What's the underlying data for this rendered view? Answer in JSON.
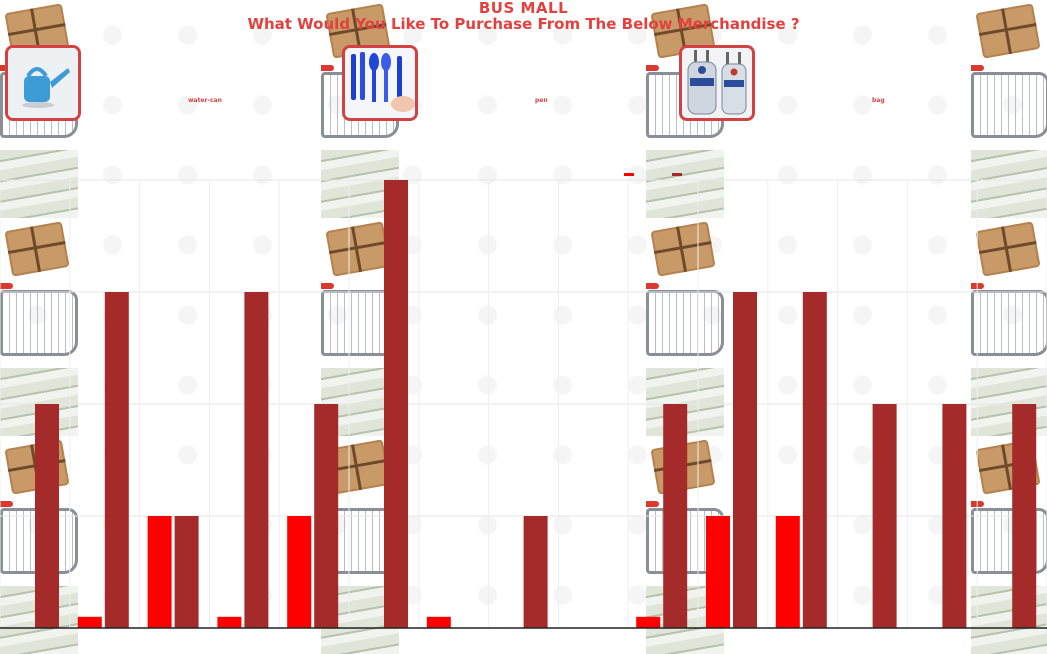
{
  "header": {
    "title": "BUS MALL",
    "subtitle": "What Would You Like To Purchase From The Below Merchandise ?"
  },
  "products": [
    {
      "name": "water-can",
      "icon": "water-can-icon"
    },
    {
      "name": "pen",
      "icon": "pen-icon"
    },
    {
      "name": "bag",
      "icon": "bag-icon"
    }
  ],
  "colors": {
    "accent": "#e3413f",
    "bar_dark": "#a52a2a",
    "bar_bright": "#ff0000"
  },
  "chart_data": {
    "type": "bar",
    "ylim": [
      0,
      4
    ],
    "grid": true,
    "series": [
      {
        "color": "#ff0000",
        "values": [
          0,
          0.1,
          1,
          0.1,
          1,
          0,
          0.1,
          0,
          0,
          0.1,
          1,
          1,
          0,
          0,
          0
        ]
      },
      {
        "color": "#a52a2a",
        "values": [
          2,
          3,
          1,
          3,
          2,
          4,
          0,
          1,
          0,
          2,
          3,
          3,
          2,
          2,
          2
        ]
      }
    ]
  }
}
